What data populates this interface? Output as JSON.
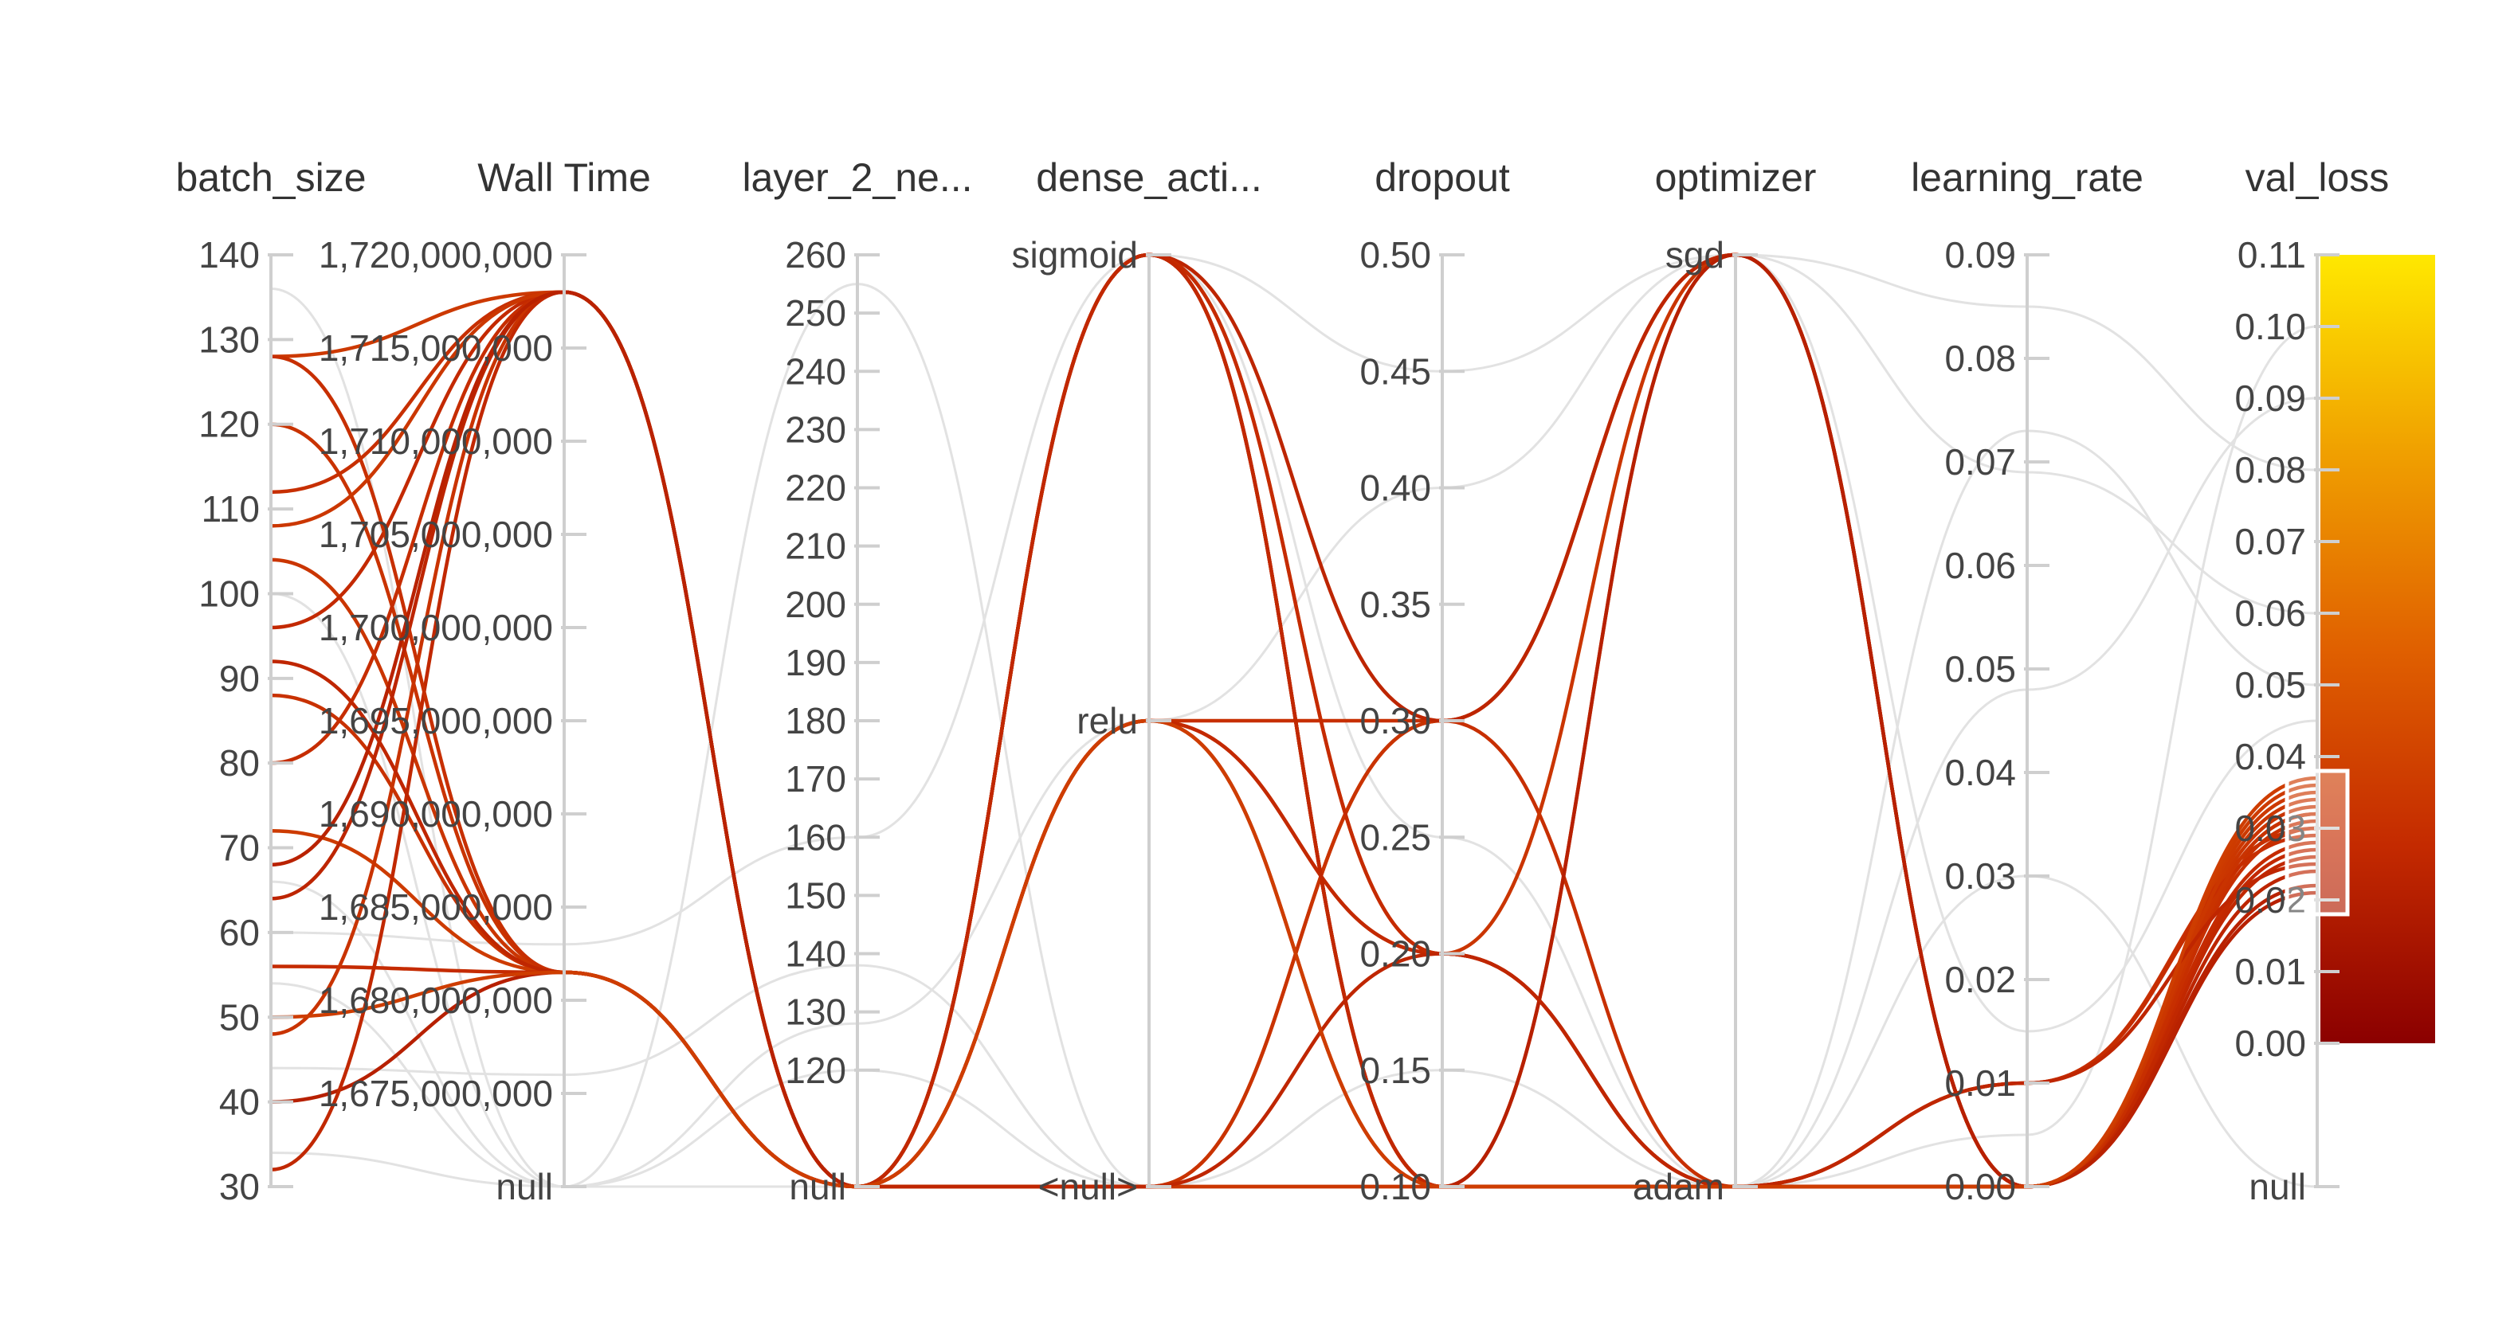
{
  "chart_data": {
    "type": "parallel-coordinates",
    "axes": [
      {
        "key": "batch_size",
        "label": "batch_size",
        "ticks": [
          "30",
          "40",
          "50",
          "60",
          "70",
          "80",
          "90",
          "100",
          "110",
          "120",
          "130",
          "140"
        ],
        "range": [
          30,
          140
        ]
      },
      {
        "key": "wall_time",
        "label": "Wall Time",
        "ticks": [
          "null",
          "1,675,000,000",
          "1,680,000,000",
          "1,685,000,000",
          "1,690,000,000",
          "1,695,000,000",
          "1,700,000,000",
          "1,705,000,000",
          "1,710,000,000",
          "1,715,000,000",
          "1,720,000,000"
        ],
        "range": [
          1670000000,
          1720000000
        ]
      },
      {
        "key": "layer_2_neurons",
        "label": "layer_2_ne...",
        "ticks": [
          "null",
          "120",
          "130",
          "140",
          "150",
          "160",
          "170",
          "180",
          "190",
          "200",
          "210",
          "220",
          "230",
          "240",
          "250",
          "260"
        ],
        "range": [
          100,
          260
        ]
      },
      {
        "key": "dense_activation",
        "label": "dense_acti...",
        "ticks": [
          "<null>",
          "relu",
          "sigmoid"
        ],
        "categorical": true
      },
      {
        "key": "dropout",
        "label": "dropout",
        "ticks": [
          "0.10",
          "0.15",
          "0.20",
          "0.25",
          "0.30",
          "0.35",
          "0.40",
          "0.45",
          "0.50"
        ],
        "range": [
          0.1,
          0.5
        ]
      },
      {
        "key": "optimizer",
        "label": "optimizer",
        "ticks": [
          "adam",
          "sgd"
        ],
        "categorical": true
      },
      {
        "key": "learning_rate",
        "label": "learning_rate",
        "ticks": [
          "0.00",
          "0.01",
          "0.02",
          "0.03",
          "0.04",
          "0.05",
          "0.06",
          "0.07",
          "0.08",
          "0.09"
        ],
        "range": [
          0.0,
          0.09
        ]
      },
      {
        "key": "val_loss",
        "label": "val_loss",
        "ticks": [
          "null",
          "0.00",
          "0.01",
          "0.02",
          "0.03",
          "0.04",
          "0.05",
          "0.06",
          "0.07",
          "0.08",
          "0.09",
          "0.10",
          "0.11"
        ],
        "range": [
          -0.02,
          0.11
        ]
      }
    ],
    "colorbar": {
      "metric": "val_loss",
      "min": 0.0,
      "max": 0.11,
      "colors": [
        "#8b0000",
        "#c42a00",
        "#e06000",
        "#f0a000",
        "#ffe800"
      ]
    },
    "brush": {
      "axis": "val_loss",
      "range": [
        0.018,
        0.038
      ]
    },
    "highlighted_runs": [
      {
        "batch_size": 128,
        "wall_time": 1718000000,
        "layer_2_neurons": "null",
        "dense_activation": "<null>",
        "dropout": 0.3,
        "optimizer": "sgd",
        "learning_rate": 0.0,
        "val_loss": 0.035
      },
      {
        "batch_size": 120,
        "wall_time": 1681500000,
        "layer_2_neurons": "null",
        "dense_activation": "<null>",
        "dropout": 0.3,
        "optimizer": "sgd",
        "learning_rate": 0.0,
        "val_loss": 0.032
      },
      {
        "batch_size": 112,
        "wall_time": 1718000000,
        "layer_2_neurons": "null",
        "dense_activation": "relu",
        "dropout": 0.3,
        "optimizer": "adam",
        "learning_rate": 0.01,
        "val_loss": 0.03
      },
      {
        "batch_size": 104,
        "wall_time": 1681500000,
        "layer_2_neurons": "null",
        "dense_activation": "relu",
        "dropout": 0.2,
        "optimizer": "sgd",
        "learning_rate": 0.0,
        "val_loss": 0.033
      },
      {
        "batch_size": 96,
        "wall_time": 1718000000,
        "layer_2_neurons": "null",
        "dense_activation": "relu",
        "dropout": 0.2,
        "optimizer": "adam",
        "learning_rate": 0.0,
        "val_loss": 0.027
      },
      {
        "batch_size": 88,
        "wall_time": 1681500000,
        "layer_2_neurons": "null",
        "dense_activation": "sigmoid",
        "dropout": 0.1,
        "optimizer": "sgd",
        "learning_rate": 0.0,
        "val_loss": 0.031
      },
      {
        "batch_size": 80,
        "wall_time": 1718000000,
        "layer_2_neurons": "null",
        "dense_activation": "sigmoid",
        "dropout": 0.1,
        "optimizer": "adam",
        "learning_rate": 0.01,
        "val_loss": 0.029
      },
      {
        "batch_size": 72,
        "wall_time": 1681500000,
        "layer_2_neurons": "null",
        "dense_activation": "sigmoid",
        "dropout": 0.2,
        "optimizer": "adam",
        "learning_rate": 0.0,
        "val_loss": 0.036
      },
      {
        "batch_size": 64,
        "wall_time": 1718000000,
        "layer_2_neurons": "null",
        "dense_activation": "sigmoid",
        "dropout": 0.3,
        "optimizer": "sgd",
        "learning_rate": 0.0,
        "val_loss": 0.024
      },
      {
        "batch_size": 56,
        "wall_time": 1681500000,
        "layer_2_neurons": "null",
        "dense_activation": "sigmoid",
        "dropout": 0.2,
        "optimizer": "adam",
        "learning_rate": 0.0,
        "val_loss": 0.028
      },
      {
        "batch_size": 48,
        "wall_time": 1718000000,
        "layer_2_neurons": "null",
        "dense_activation": "sigmoid",
        "dropout": 0.1,
        "optimizer": "adam",
        "learning_rate": 0.0,
        "val_loss": 0.032
      },
      {
        "batch_size": 40,
        "wall_time": 1681500000,
        "layer_2_neurons": "null",
        "dense_activation": "sigmoid",
        "dropout": 0.1,
        "optimizer": "sgd",
        "learning_rate": 0.0,
        "val_loss": 0.021
      },
      {
        "batch_size": 32,
        "wall_time": 1718000000,
        "layer_2_neurons": "null",
        "dense_activation": "sigmoid",
        "dropout": 0.1,
        "optimizer": "adam",
        "learning_rate": 0.0,
        "val_loss": 0.026
      },
      {
        "batch_size": 128,
        "wall_time": 1681500000,
        "layer_2_neurons": "null",
        "dense_activation": "<null>",
        "dropout": 0.1,
        "optimizer": "adam",
        "learning_rate": 0.0,
        "val_loss": 0.03
      },
      {
        "batch_size": 108,
        "wall_time": 1718000000,
        "layer_2_neurons": "null",
        "dense_activation": "<null>",
        "dropout": 0.1,
        "optimizer": "adam",
        "learning_rate": 0.0,
        "val_loss": 0.034
      },
      {
        "batch_size": 92,
        "wall_time": 1681500000,
        "layer_2_neurons": "null",
        "dense_activation": "<null>",
        "dropout": 0.2,
        "optimizer": "adam",
        "learning_rate": 0.01,
        "val_loss": 0.025
      },
      {
        "batch_size": 68,
        "wall_time": 1718000000,
        "layer_2_neurons": "null",
        "dense_activation": "relu",
        "dropout": 0.1,
        "optimizer": "adam",
        "learning_rate": 0.0,
        "val_loss": 0.022
      },
      {
        "batch_size": 50,
        "wall_time": 1681500000,
        "layer_2_neurons": "null",
        "dense_activation": "relu",
        "dropout": 0.1,
        "optimizer": "adam",
        "learning_rate": 0.0,
        "val_loss": 0.037
      }
    ],
    "muted_runs": [
      {
        "batch_size": 136,
        "wall_time": "null",
        "layer_2_neurons": 255,
        "dense_activation": "<null>",
        "dropout": 0.3,
        "optimizer": "sgd",
        "learning_rate": 0.085,
        "val_loss": 0.08
      },
      {
        "batch_size": 60,
        "wall_time": 1683000000,
        "layer_2_neurons": 160,
        "dense_activation": "sigmoid",
        "dropout": 0.25,
        "optimizer": "adam",
        "learning_rate": 0.073,
        "val_loss": 0.05
      },
      {
        "batch_size": 54,
        "wall_time": "null",
        "layer_2_neurons": 128,
        "dense_activation": "relu",
        "dropout": 0.4,
        "optimizer": "sgd",
        "learning_rate": 0.069,
        "val_loss": 0.06
      },
      {
        "batch_size": 44,
        "wall_time": 1676000000,
        "layer_2_neurons": 138,
        "dense_activation": "<null>",
        "dropout": 0.15,
        "optimizer": "adam",
        "learning_rate": 0.048,
        "val_loss": 0.09
      },
      {
        "batch_size": 34,
        "wall_time": "null",
        "layer_2_neurons": "null",
        "dense_activation": "sigmoid",
        "dropout": 0.45,
        "optimizer": "sgd",
        "learning_rate": 0.015,
        "val_loss": 0.045
      },
      {
        "batch_size": 66,
        "wall_time": "null",
        "layer_2_neurons": "null",
        "dense_activation": "relu",
        "dropout": 0.1,
        "optimizer": "adam",
        "learning_rate": 0.03,
        "val_loss": "null"
      },
      {
        "batch_size": 100,
        "wall_time": "null",
        "layer_2_neurons": 120,
        "dense_activation": "<null>",
        "dropout": 0.2,
        "optimizer": "adam",
        "learning_rate": 0.005,
        "val_loss": 0.1
      }
    ]
  }
}
